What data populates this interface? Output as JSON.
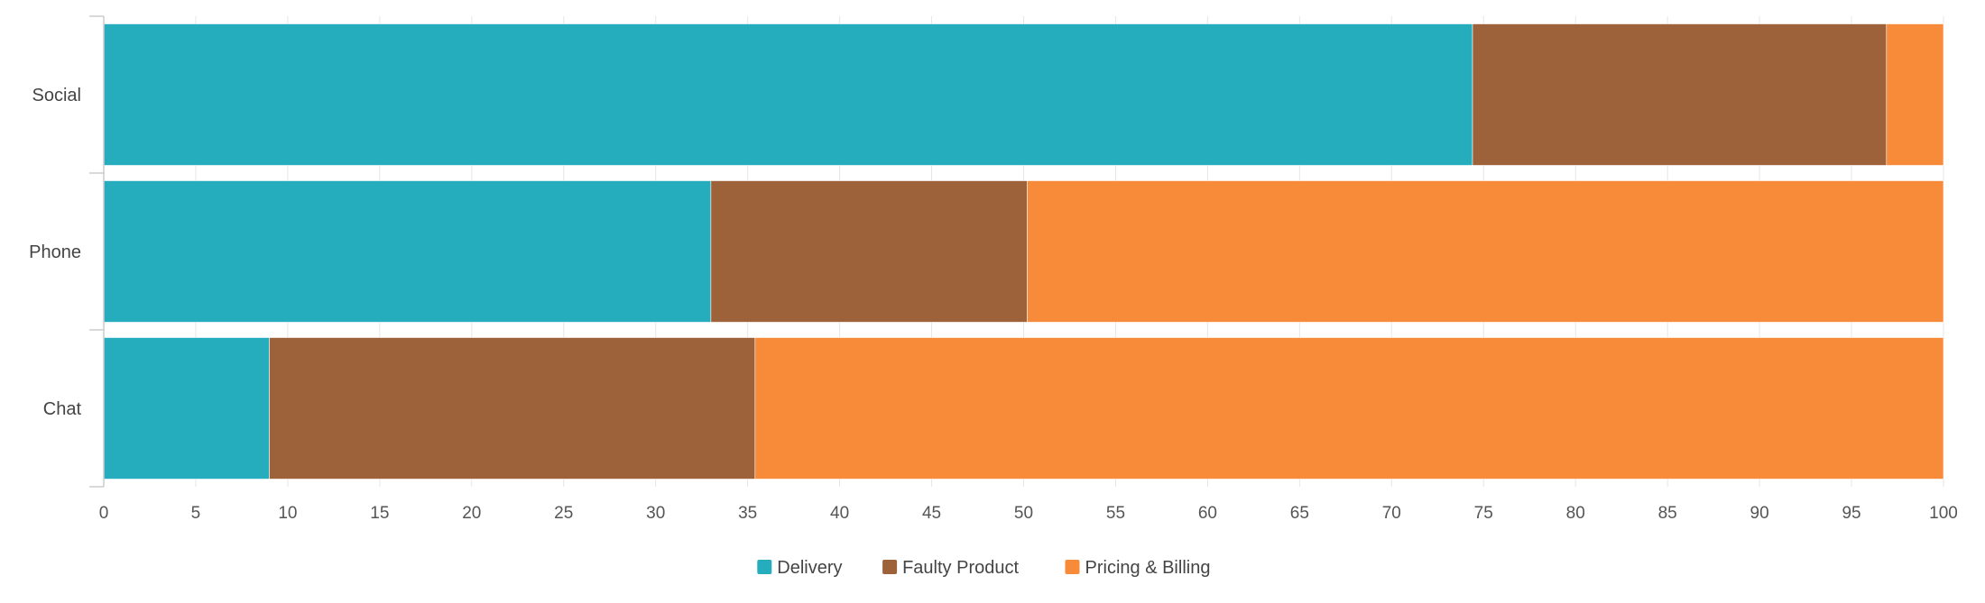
{
  "chart_data": {
    "type": "bar",
    "orientation": "horizontal",
    "stacked": "percent",
    "categories": [
      "Social",
      "Phone",
      "Chat"
    ],
    "series": [
      {
        "name": "Delivery",
        "color": "#25adbe",
        "values": [
          74.4,
          33.0,
          9.0
        ]
      },
      {
        "name": "Faulty Product",
        "color": "#9e623a",
        "values": [
          22.5,
          17.2,
          26.4
        ]
      },
      {
        "name": "Pricing & Billing",
        "color": "#f88b3a",
        "values": [
          3.1,
          49.8,
          64.6
        ]
      }
    ],
    "xlim": [
      0,
      100
    ],
    "xticks": [
      "0",
      "5",
      "10",
      "15",
      "20",
      "25",
      "30",
      "35",
      "40",
      "45",
      "50",
      "55",
      "60",
      "65",
      "70",
      "75",
      "80",
      "85",
      "90",
      "95",
      "100"
    ],
    "grid": true,
    "legend_position": "bottom-center"
  }
}
